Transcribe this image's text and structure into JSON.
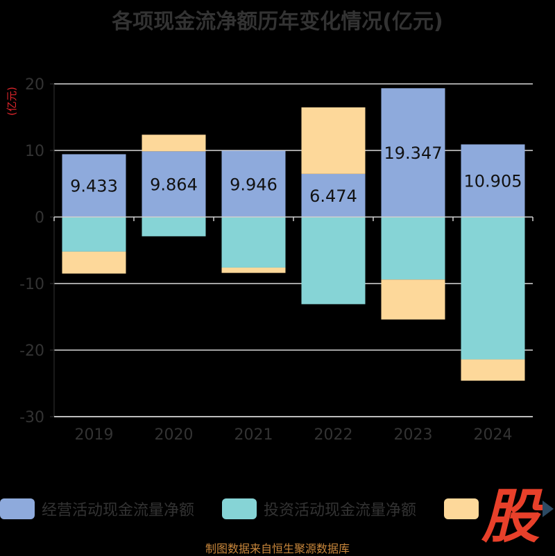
{
  "chart_data": {
    "type": "bar",
    "stacked": true,
    "title": "各项现金流净额历年变化情况(亿元)",
    "ylabel": "(亿元)",
    "categories": [
      "2019",
      "2020",
      "2021",
      "2022",
      "2023",
      "2024"
    ],
    "ylim": [
      -30,
      20
    ],
    "yticks": [
      20,
      10,
      0,
      -10,
      -20,
      -30
    ],
    "grid": true,
    "legend_position": "bottom",
    "series": [
      {
        "name": "经营活动现金流量净额",
        "color": "#8eaadc",
        "values": [
          9.433,
          9.864,
          9.946,
          6.474,
          19.347,
          10.905
        ],
        "show_labels": true
      },
      {
        "name": "投资活动现金流量净额",
        "color": "#86d4d6",
        "values": [
          -5.2,
          -2.9,
          -7.6,
          -13.1,
          -9.4,
          -21.4
        ]
      },
      {
        "name": "",
        "color": "#fdd89a",
        "values": [
          -3.3,
          2.5,
          -0.8,
          10.0,
          -6.0,
          -3.2
        ]
      }
    ]
  },
  "watermark": "股",
  "source": "制图数据来自恒生聚源数据库"
}
